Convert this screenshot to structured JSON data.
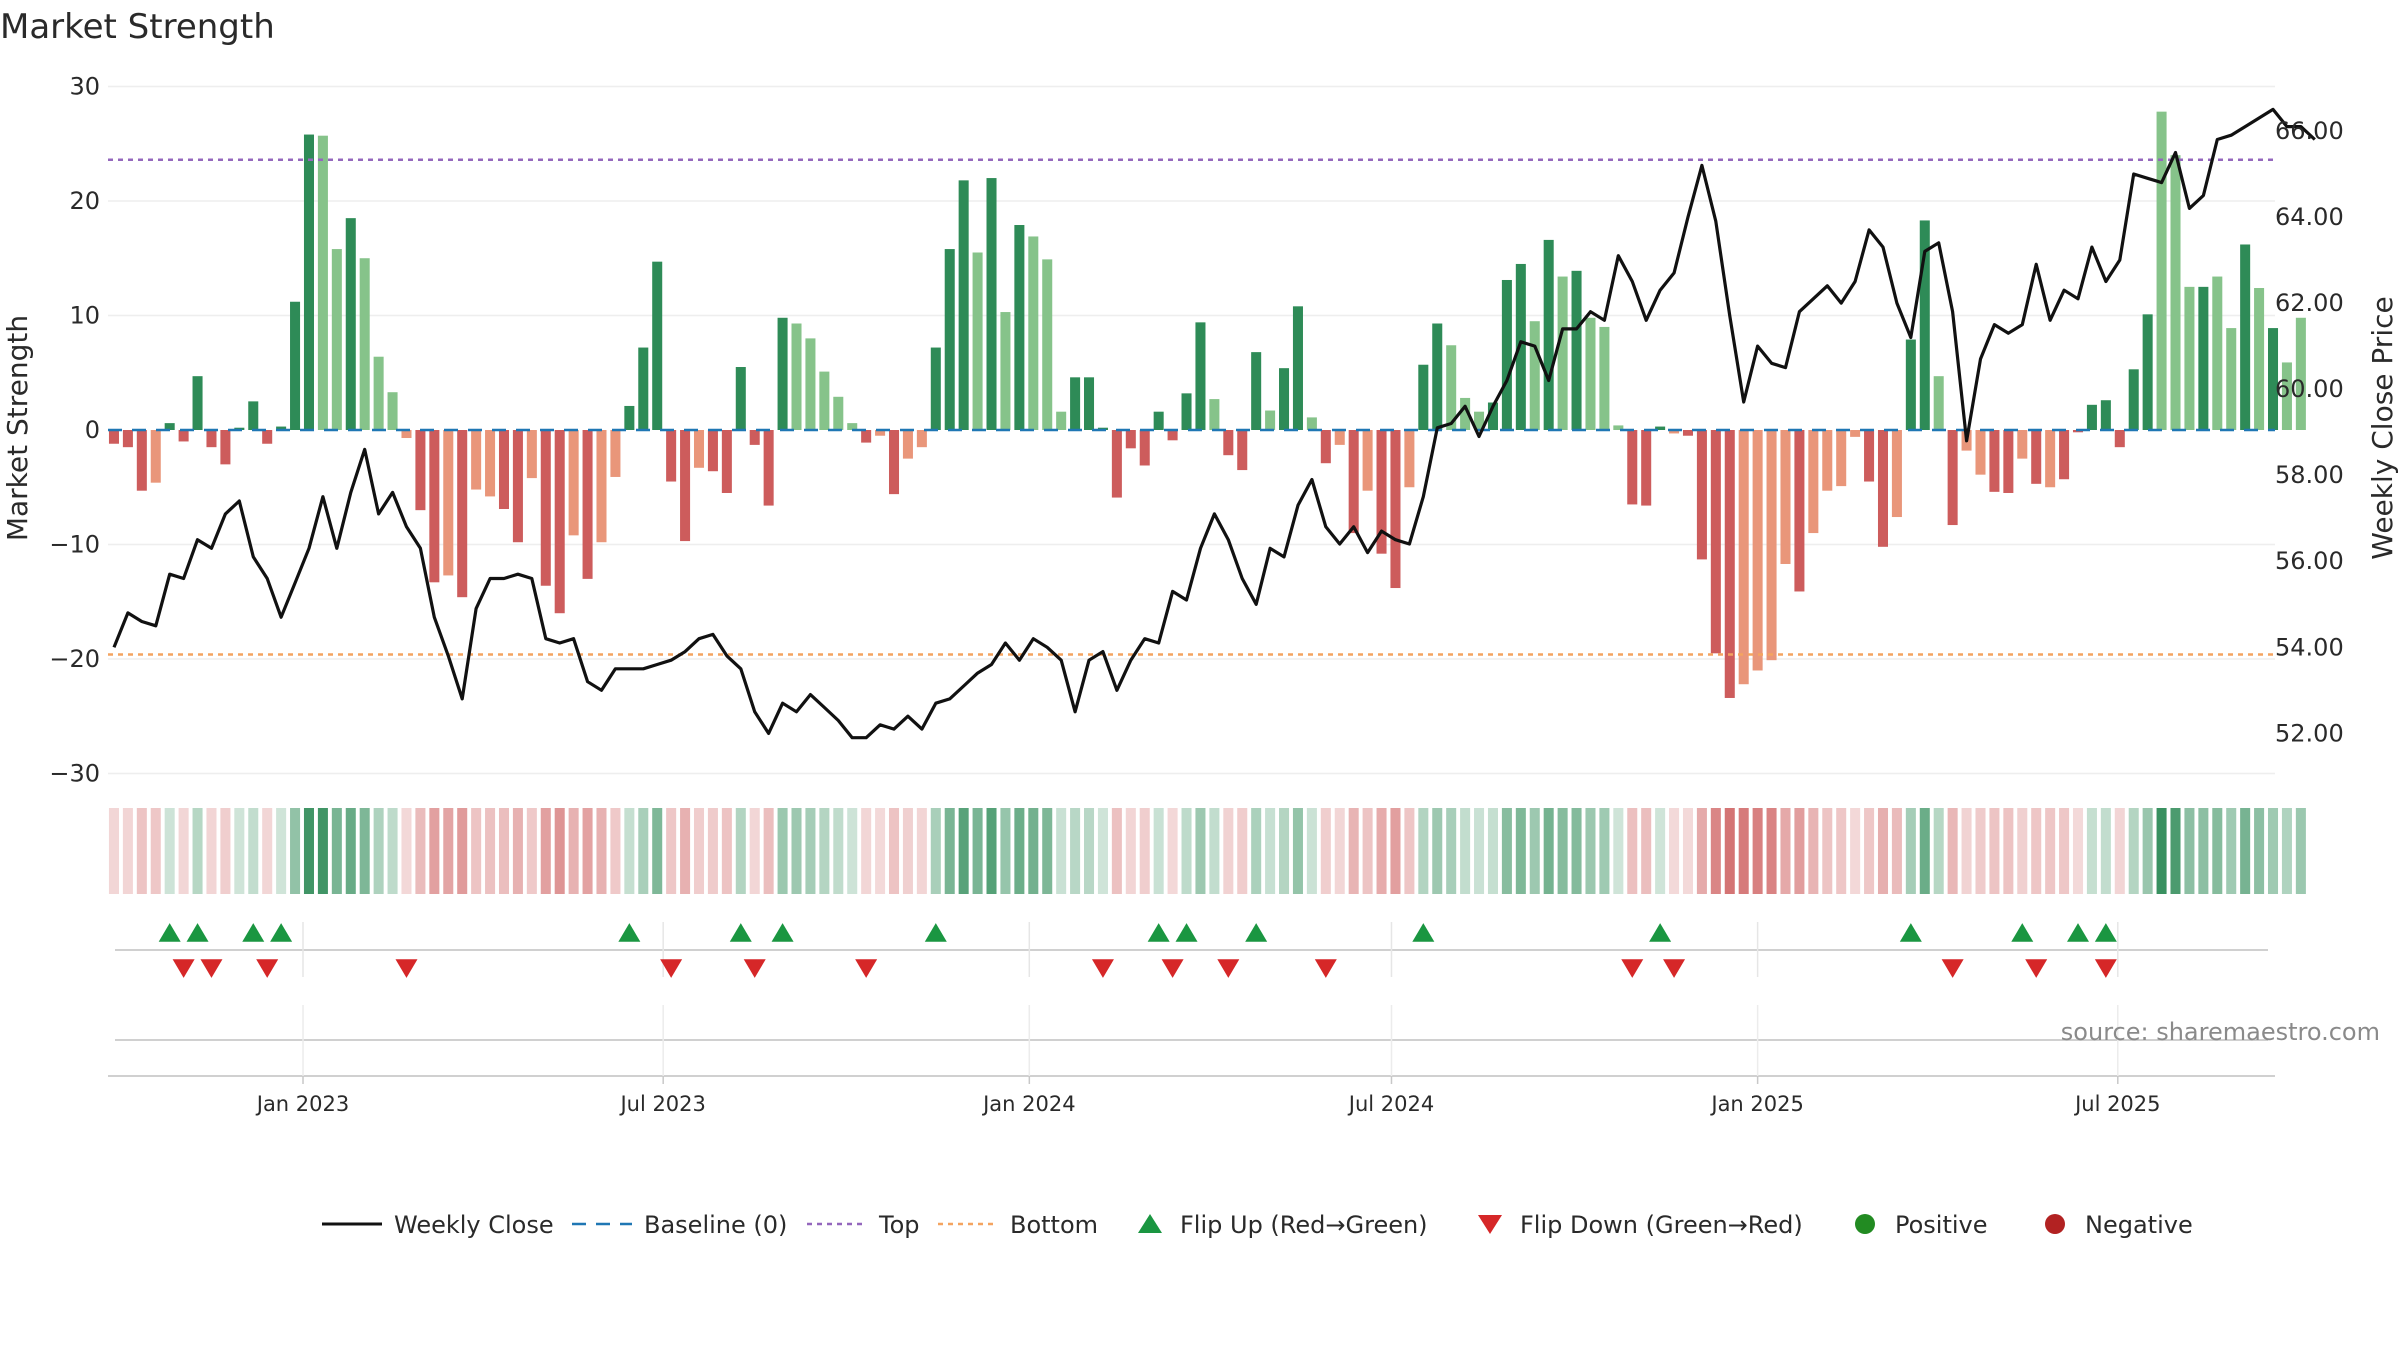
{
  "chart_data": {
    "type": "bar",
    "title": "Market Strength",
    "ylabel_left": "Market Strength",
    "ylabel_right": "Weekly Close Price",
    "source": "source: sharemaestro.com",
    "y_left_range": [
      -31,
      31
    ],
    "y_left_ticks": [
      "30",
      "20",
      "10",
      "0",
      "−10",
      "−20",
      "−30"
    ],
    "y_left_tick_values": [
      30,
      20,
      10,
      0,
      -10,
      -20,
      -30
    ],
    "y_right_range": [
      50.8,
      67.3
    ],
    "y_right_ticks": [
      "66.00",
      "64.00",
      "62.00",
      "60.00",
      "58.00",
      "56.00",
      "54.00",
      "52.00"
    ],
    "y_right_tick_values": [
      66,
      64,
      62,
      60,
      58,
      56,
      54,
      52
    ],
    "top_level": 23.6,
    "bottom_level": -19.6,
    "x_date_range": [
      "2022-09-25",
      "2025-09-18"
    ],
    "x_tick_labels": [
      "Jan 2023",
      "Jul 2023",
      "Jan 2024",
      "Jul 2024",
      "Jan 2025",
      "Jul 2025"
    ],
    "x_tick_dates": [
      "2023-01-01",
      "2023-07-01",
      "2024-01-01",
      "2024-07-01",
      "2025-01-01",
      "2025-07-01"
    ],
    "start_date": "2022-09-28",
    "week_step_days": 7,
    "strength": [
      -1.2,
      -1.5,
      -5.3,
      -4.6,
      0.6,
      -1.0,
      4.7,
      -1.5,
      -3.0,
      0.2,
      2.5,
      -1.2,
      0.3,
      11.2,
      25.8,
      25.7,
      15.8,
      18.5,
      15.0,
      6.4,
      3.3,
      -0.7,
      -7.0,
      -13.3,
      -12.7,
      -14.6,
      -5.2,
      -5.8,
      -6.9,
      -9.8,
      -4.2,
      -13.6,
      -16.0,
      -9.2,
      -13.0,
      -9.8,
      -4.1,
      2.1,
      7.2,
      14.7,
      -4.5,
      -9.7,
      -3.3,
      -3.6,
      -5.5,
      5.5,
      -1.3,
      -6.6,
      9.8,
      9.3,
      8.0,
      5.1,
      2.9,
      0.6,
      -1.1,
      -0.5,
      -5.6,
      -2.5,
      -1.5,
      7.2,
      15.8,
      21.8,
      15.5,
      22.0,
      10.3,
      17.9,
      16.9,
      14.9,
      1.6,
      4.6,
      4.6,
      0.2,
      -5.9,
      -1.6,
      -3.1,
      1.6,
      -0.9,
      3.2,
      9.4,
      2.7,
      -2.2,
      -3.5,
      6.8,
      1.7,
      5.4,
      10.8,
      1.1,
      -2.9,
      -1.3,
      -9.0,
      -5.3,
      -10.8,
      -13.8,
      -5.0,
      5.7,
      9.3,
      7.4,
      2.8,
      1.6,
      2.4,
      13.1,
      14.5,
      9.5,
      16.6,
      13.4,
      13.9,
      9.8,
      9.0,
      0.4,
      -6.5,
      -6.6,
      0.3,
      -0.3,
      -0.5,
      -11.3,
      -19.5,
      -23.4,
      -22.2,
      -21.0,
      -20.1,
      -11.7,
      -14.1,
      -9.0,
      -5.3,
      -4.9,
      -0.6,
      -4.5,
      -10.2,
      -7.6,
      7.9,
      18.3,
      4.7,
      -8.3,
      -1.8,
      -3.9,
      -5.4,
      -5.5,
      -2.5,
      -4.7,
      -5.0,
      -4.3,
      -0.2,
      2.2,
      2.6,
      -1.5,
      5.3,
      10.1,
      27.8,
      24.0,
      12.5,
      12.5,
      13.4,
      8.9,
      16.2,
      12.4,
      8.9,
      5.9,
      9.8
    ],
    "strength_shade": [
      "dark",
      "dark",
      "dark",
      "light",
      "dark",
      "dark",
      "dark",
      "dark",
      "dark",
      "dark",
      "dark",
      "dark",
      "dark",
      "dark",
      "dark",
      "light",
      "light",
      "dark",
      "light",
      "light",
      "light",
      "light",
      "dark",
      "dark",
      "light",
      "dark",
      "light",
      "light",
      "dark",
      "dark",
      "light",
      "dark",
      "dark",
      "light",
      "dark",
      "light",
      "light",
      "dark",
      "dark",
      "dark",
      "dark",
      "dark",
      "light",
      "dark",
      "dark",
      "dark",
      "dark",
      "dark",
      "dark",
      "light",
      "light",
      "light",
      "light",
      "light",
      "dark",
      "light",
      "dark",
      "light",
      "light",
      "dark",
      "dark",
      "dark",
      "light",
      "dark",
      "light",
      "dark",
      "light",
      "light",
      "light",
      "dark",
      "dark",
      "dark",
      "dark",
      "dark",
      "dark",
      "dark",
      "dark",
      "dark",
      "dark",
      "light",
      "dark",
      "dark",
      "dark",
      "light",
      "dark",
      "dark",
      "light",
      "dark",
      "light",
      "dark",
      "light",
      "dark",
      "dark",
      "light",
      "dark",
      "dark",
      "light",
      "light",
      "light",
      "dark",
      "dark",
      "dark",
      "light",
      "dark",
      "light",
      "dark",
      "light",
      "light",
      "light",
      "dark",
      "dark",
      "dark",
      "light",
      "dark",
      "dark",
      "dark",
      "dark",
      "light",
      "light",
      "light",
      "light",
      "dark",
      "light",
      "light",
      "light",
      "light",
      "dark",
      "dark",
      "light",
      "dark",
      "dark",
      "light",
      "dark",
      "light",
      "light",
      "dark",
      "dark",
      "light",
      "dark",
      "light",
      "dark",
      "dark",
      "dark",
      "dark",
      "dark",
      "dark",
      "dark",
      "light",
      "light",
      "light",
      "dark",
      "light",
      "light",
      "dark",
      "light",
      "dark",
      "light",
      "light",
      "light",
      "dark",
      "dark",
      "dark",
      "dark",
      "light",
      "light",
      "dark",
      "light",
      "light",
      "light",
      "dark"
    ],
    "weekly_close": [
      54.0,
      54.8,
      54.6,
      54.5,
      55.7,
      55.6,
      56.5,
      56.3,
      57.1,
      57.4,
      56.1,
      55.6,
      54.7,
      55.5,
      56.3,
      57.5,
      56.3,
      57.6,
      58.6,
      57.1,
      57.6,
      56.8,
      56.3,
      54.7,
      53.8,
      52.8,
      54.9,
      55.6,
      55.6,
      55.7,
      55.6,
      54.2,
      54.1,
      54.2,
      53.2,
      53.0,
      53.5,
      53.5,
      53.5,
      53.6,
      53.7,
      53.9,
      54.2,
      54.3,
      53.8,
      53.5,
      52.5,
      52.0,
      52.7,
      52.5,
      52.9,
      52.6,
      52.3,
      51.9,
      51.9,
      52.2,
      52.1,
      52.4,
      52.1,
      52.7,
      52.8,
      53.1,
      53.4,
      53.6,
      54.1,
      53.7,
      54.2,
      54.0,
      53.7,
      52.5,
      53.7,
      53.9,
      53.0,
      53.7,
      54.2,
      54.1,
      55.3,
      55.1,
      56.3,
      57.1,
      56.5,
      55.6,
      55.0,
      56.3,
      56.1,
      57.3,
      57.9,
      56.8,
      56.4,
      56.8,
      56.2,
      56.7,
      56.5,
      56.4,
      57.5,
      59.1,
      59.2,
      59.6,
      58.9,
      59.6,
      60.2,
      61.1,
      61.0,
      60.2,
      61.4,
      61.4,
      61.8,
      61.6,
      63.1,
      62.5,
      61.6,
      62.3,
      62.7,
      64.0,
      65.2,
      63.9,
      61.7,
      59.7,
      61.0,
      60.6,
      60.5,
      61.8,
      62.1,
      62.4,
      62.0,
      62.5,
      63.7,
      63.3,
      62.0,
      61.2,
      63.2,
      63.4,
      61.8,
      58.8,
      60.7,
      61.5,
      61.3,
      61.5,
      62.9,
      61.6,
      62.3,
      62.1,
      63.3,
      62.5,
      63.0,
      65.0,
      64.9,
      64.8,
      65.5,
      64.2,
      64.5,
      65.8,
      65.9,
      66.1,
      66.3,
      66.5,
      66.1,
      66.1,
      65.8
    ],
    "flip_up_weeks": [
      4,
      6,
      10,
      12,
      37,
      45,
      48,
      59,
      75,
      77,
      82,
      94,
      111,
      129,
      137,
      141,
      143
    ],
    "flip_down_weeks": [
      5,
      7,
      11,
      21,
      40,
      46,
      54,
      71,
      76,
      80,
      87,
      109,
      112,
      132,
      138,
      143
    ],
    "colors": {
      "pos_dark": "#2e8b57",
      "pos_light": "#86c38a",
      "neg_dark": "#cd5c5c",
      "neg_light": "#e9967a",
      "close_line": "#111111",
      "baseline": "#1f77b4",
      "top_line": "#9467bd",
      "bottom_line": "#f4a460",
      "flip_up": "#1a9641",
      "flip_down": "#d62728",
      "positive_marker": "#228b22",
      "negative_marker": "#b22222"
    },
    "legend": [
      {
        "label": "Weekly Close",
        "kind": "solid-line",
        "color": "#111111"
      },
      {
        "label": "Baseline (0)",
        "kind": "dash-line",
        "color": "#1f77b4"
      },
      {
        "label": "Top",
        "kind": "dot-line",
        "color": "#9467bd"
      },
      {
        "label": "Bottom",
        "kind": "dot-line",
        "color": "#f4a460"
      },
      {
        "label": "Flip Up (Red→Green)",
        "kind": "triangle-up",
        "color": "#1a9641"
      },
      {
        "label": "Flip Down (Green→Red)",
        "kind": "triangle-down",
        "color": "#d62728"
      },
      {
        "label": "Positive",
        "kind": "circle",
        "color": "#228b22"
      },
      {
        "label": "Negative",
        "kind": "circle",
        "color": "#b22222"
      }
    ],
    "legend_position": "bottom-center",
    "grid": true
  }
}
